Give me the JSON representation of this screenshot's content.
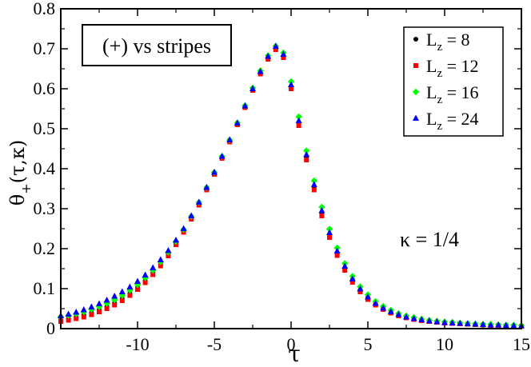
{
  "chart_data": {
    "type": "scatter",
    "title_box": "(+) vs stripes",
    "annotation": "κ = 1/4",
    "xlabel": "τ",
    "ylabel_main": "θ",
    "ylabel_sub": "+",
    "ylabel_rest": "(τ,κ)",
    "xlim": [
      -15,
      15
    ],
    "ylim": [
      0,
      0.8
    ],
    "x_ticks": [
      -10,
      -5,
      0,
      5,
      10,
      15
    ],
    "x_tick_labels": [
      "-10",
      "-5",
      "0",
      "5",
      "10",
      "15"
    ],
    "y_ticks": [
      0,
      0.1,
      0.2,
      0.3,
      0.4,
      0.5,
      0.6,
      0.7,
      0.8
    ],
    "y_tick_labels": [
      "0",
      "0.1",
      "0.2",
      "0.3",
      "0.4",
      "0.5",
      "0.6",
      "0.7",
      "0.8"
    ],
    "series": [
      {
        "name": "L_z = 8",
        "label_main": "L",
        "label_sub": "z",
        "label_rest": " = 8",
        "marker": "circle",
        "color": "#000000",
        "x": [
          -15.0,
          -14.5,
          -14.0,
          -13.5,
          -13.0,
          -12.5,
          -12.0,
          -11.5,
          -11.0,
          -10.5,
          -10.0,
          -9.5,
          -9.0,
          -8.5,
          -8.0,
          -7.5,
          -7.0,
          -6.5,
          -6.0,
          -5.5,
          -5.0,
          -4.5,
          -4.0,
          -3.5,
          -3.0,
          -2.5,
          -2.0,
          -1.5,
          -1.0,
          -0.5,
          0.0,
          0.5,
          1.0,
          1.5,
          2.0,
          2.5,
          3.0,
          3.5,
          4.0,
          4.5,
          5.0,
          5.5,
          6.0,
          6.5,
          7.0,
          7.5,
          8.0,
          8.5,
          9.0,
          9.5,
          10.0,
          10.5,
          11.0,
          11.5,
          12.0,
          12.5,
          13.0,
          13.5,
          14.0,
          14.5,
          15.0
        ],
        "y": [
          0.022,
          0.025,
          0.029,
          0.034,
          0.04,
          0.047,
          0.055,
          0.064,
          0.075,
          0.088,
          0.103,
          0.12,
          0.14,
          0.162,
          0.187,
          0.215,
          0.245,
          0.278,
          0.313,
          0.35,
          0.388,
          0.428,
          0.469,
          0.512,
          0.555,
          0.598,
          0.64,
          0.677,
          0.7,
          0.68,
          0.605,
          0.515,
          0.43,
          0.355,
          0.29,
          0.235,
          0.19,
          0.152,
          0.122,
          0.097,
          0.078,
          0.063,
          0.051,
          0.042,
          0.035,
          0.03,
          0.026,
          0.023,
          0.02,
          0.018,
          0.016,
          0.015,
          0.013,
          0.012,
          0.011,
          0.01,
          0.009,
          0.009,
          0.008,
          0.007,
          0.007
        ]
      },
      {
        "name": "L_z = 12",
        "label_main": "L",
        "label_sub": "z",
        "label_rest": " = 12",
        "marker": "square",
        "color": "#ff0000",
        "x": [
          -15.0,
          -14.5,
          -14.0,
          -13.5,
          -13.0,
          -12.5,
          -12.0,
          -11.5,
          -11.0,
          -10.5,
          -10.0,
          -9.5,
          -9.0,
          -8.5,
          -8.0,
          -7.5,
          -7.0,
          -6.5,
          -6.0,
          -5.5,
          -5.0,
          -4.5,
          -4.0,
          -3.5,
          -3.0,
          -2.5,
          -2.0,
          -1.5,
          -1.0,
          -0.5,
          0.0,
          0.5,
          1.0,
          1.5,
          2.0,
          2.5,
          3.0,
          3.5,
          4.0,
          4.5,
          5.0,
          5.5,
          6.0,
          6.5,
          7.0,
          7.5,
          8.0,
          8.5,
          9.0,
          9.5,
          10.0,
          10.5,
          11.0,
          11.5,
          12.0,
          12.5,
          13.0,
          13.5,
          14.0,
          14.5,
          15.0
        ],
        "y": [
          0.018,
          0.021,
          0.025,
          0.029,
          0.035,
          0.042,
          0.05,
          0.059,
          0.07,
          0.083,
          0.098,
          0.115,
          0.135,
          0.157,
          0.182,
          0.21,
          0.241,
          0.274,
          0.309,
          0.347,
          0.386,
          0.426,
          0.467,
          0.51,
          0.553,
          0.596,
          0.637,
          0.674,
          0.698,
          0.678,
          0.6,
          0.508,
          0.422,
          0.347,
          0.282,
          0.228,
          0.183,
          0.146,
          0.116,
          0.092,
          0.073,
          0.059,
          0.048,
          0.039,
          0.032,
          0.027,
          0.023,
          0.02,
          0.018,
          0.016,
          0.014,
          0.013,
          0.012,
          0.011,
          0.01,
          0.009,
          0.008,
          0.008,
          0.007,
          0.006,
          0.006
        ]
      },
      {
        "name": "L_z = 16",
        "label_main": "L",
        "label_sub": "z",
        "label_rest": " = 16",
        "marker": "diamond",
        "color": "#00ff00",
        "x": [
          -15.0,
          -14.5,
          -14.0,
          -13.5,
          -13.0,
          -12.5,
          -12.0,
          -11.5,
          -11.0,
          -10.5,
          -10.0,
          -9.5,
          -9.0,
          -8.5,
          -8.0,
          -7.5,
          -7.0,
          -6.5,
          -6.0,
          -5.5,
          -5.0,
          -4.5,
          -4.0,
          -3.5,
          -3.0,
          -2.5,
          -2.0,
          -1.5,
          -1.0,
          -0.5,
          0.0,
          0.5,
          1.0,
          1.5,
          2.0,
          2.5,
          3.0,
          3.5,
          4.0,
          4.5,
          5.0,
          5.5,
          6.0,
          6.5,
          7.0,
          7.5,
          8.0,
          8.5,
          9.0,
          9.5,
          10.0,
          10.5,
          11.0,
          11.5,
          12.0,
          12.5,
          13.0,
          13.5,
          14.0,
          14.5,
          15.0
        ],
        "y": [
          0.03,
          0.033,
          0.037,
          0.042,
          0.048,
          0.055,
          0.063,
          0.072,
          0.083,
          0.096,
          0.11,
          0.127,
          0.146,
          0.167,
          0.191,
          0.218,
          0.248,
          0.281,
          0.316,
          0.353,
          0.391,
          0.431,
          0.472,
          0.515,
          0.558,
          0.602,
          0.645,
          0.683,
          0.707,
          0.69,
          0.618,
          0.53,
          0.445,
          0.37,
          0.304,
          0.249,
          0.202,
          0.163,
          0.131,
          0.105,
          0.085,
          0.068,
          0.056,
          0.046,
          0.038,
          0.032,
          0.028,
          0.024,
          0.021,
          0.019,
          0.017,
          0.016,
          0.014,
          0.013,
          0.012,
          0.011,
          0.011,
          0.01,
          0.009,
          0.009,
          0.008
        ]
      },
      {
        "name": "L_z = 24",
        "label_main": "L",
        "label_sub": "z",
        "label_rest": " = 24",
        "marker": "triangle",
        "color": "#0000ff",
        "x": [
          -15.0,
          -14.5,
          -14.0,
          -13.5,
          -13.0,
          -12.5,
          -12.0,
          -11.5,
          -11.0,
          -10.5,
          -10.0,
          -9.5,
          -9.0,
          -8.5,
          -8.0,
          -7.5,
          -7.0,
          -6.5,
          -6.0,
          -5.5,
          -5.0,
          -4.5,
          -4.0,
          -3.5,
          -3.0,
          -2.5,
          -2.0,
          -1.5,
          -1.0,
          -0.5,
          0.0,
          0.5,
          1.0,
          1.5,
          2.0,
          2.5,
          3.0,
          3.5,
          4.0,
          4.5,
          5.0,
          5.5,
          6.0,
          6.5,
          7.0,
          7.5,
          8.0,
          8.5,
          9.0,
          9.5,
          10.0,
          10.5,
          11.0,
          11.5,
          12.0,
          12.5,
          13.0,
          13.5,
          14.0,
          14.5,
          15.0
        ],
        "y": [
          0.032,
          0.036,
          0.041,
          0.047,
          0.054,
          0.062,
          0.071,
          0.081,
          0.092,
          0.104,
          0.118,
          0.134,
          0.152,
          0.172,
          0.195,
          0.221,
          0.25,
          0.282,
          0.316,
          0.353,
          0.391,
          0.431,
          0.472,
          0.514,
          0.557,
          0.6,
          0.643,
          0.681,
          0.706,
          0.686,
          0.61,
          0.52,
          0.435,
          0.36,
          0.295,
          0.24,
          0.194,
          0.156,
          0.124,
          0.099,
          0.079,
          0.063,
          0.051,
          0.042,
          0.035,
          0.029,
          0.025,
          0.022,
          0.019,
          0.017,
          0.015,
          0.014,
          0.013,
          0.012,
          0.011,
          0.01,
          0.009,
          0.009,
          0.008,
          0.007,
          0.007
        ]
      }
    ]
  }
}
